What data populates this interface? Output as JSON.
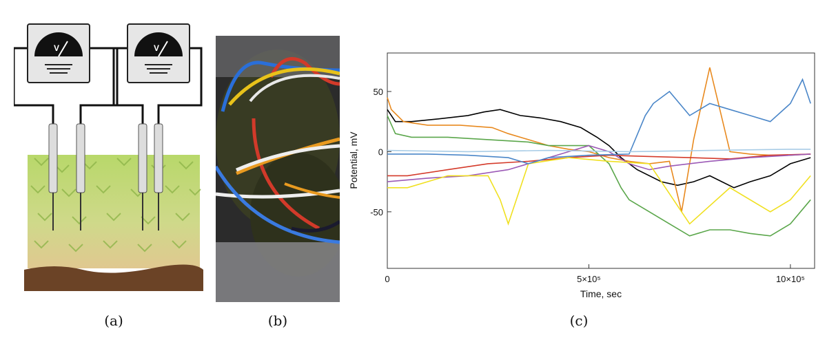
{
  "figure": {
    "captions": {
      "a": "(a)",
      "b": "(b)",
      "c": "(c)"
    },
    "meter_symbol": "V",
    "icons": [
      "voltmeter-icon",
      "electrode-icon",
      "moss-illustration",
      "soil-layer"
    ]
  },
  "chart_data": {
    "type": "line",
    "title": "",
    "xlabel": "Time, sec",
    "ylabel": "Potential, mV",
    "xlim": [
      0,
      1060000
    ],
    "ylim": [
      -97,
      82
    ],
    "x_ticks": [
      {
        "value": 0,
        "label": "0"
      },
      {
        "value": 500000,
        "label": "5×10⁵"
      },
      {
        "value": 1000000,
        "label": "10×10⁵"
      }
    ],
    "y_ticks": [
      {
        "value": 50,
        "label": "50"
      },
      {
        "value": 0,
        "label": "0"
      },
      {
        "value": -50,
        "label": "-50"
      }
    ],
    "grid": false,
    "legend": "none",
    "series": [
      {
        "color": "#000000",
        "x": [
          0,
          20000,
          60000,
          120000,
          200000,
          240000,
          280000,
          330000,
          380000,
          430000,
          480000,
          520000,
          550000,
          580000,
          620000,
          680000,
          720000,
          760000,
          800000,
          830000,
          860000,
          900000,
          950000,
          1000000,
          1050000
        ],
        "y": [
          35,
          25,
          25,
          27,
          30,
          33,
          35,
          30,
          28,
          25,
          20,
          12,
          5,
          -5,
          -15,
          -25,
          -28,
          -25,
          -20,
          -25,
          -30,
          -25,
          -20,
          -10,
          -5
        ]
      },
      {
        "color": "#e8891e",
        "x": [
          0,
          10000,
          40000,
          100000,
          180000,
          260000,
          300000,
          350000,
          400000,
          450000,
          500000,
          550000,
          600000,
          650000,
          700000,
          730000,
          760000,
          800000,
          850000,
          900000,
          950000,
          1000000,
          1050000
        ],
        "y": [
          45,
          35,
          25,
          22,
          22,
          20,
          15,
          10,
          5,
          2,
          0,
          -5,
          -8,
          -10,
          -8,
          -50,
          10,
          70,
          0,
          -2,
          -3,
          -3,
          -2
        ]
      },
      {
        "color": "#5aa64a",
        "x": [
          0,
          20000,
          60000,
          150000,
          250000,
          350000,
          400000,
          450000,
          500000,
          550000,
          580000,
          600000,
          650000,
          700000,
          750000,
          800000,
          850000,
          900000,
          950000,
          1000000,
          1050000
        ],
        "y": [
          30,
          15,
          12,
          12,
          10,
          8,
          5,
          5,
          5,
          -10,
          -30,
          -40,
          -50,
          -60,
          -70,
          -65,
          -65,
          -68,
          -70,
          -60,
          -40
        ]
      },
      {
        "color": "#d43a2a",
        "x": [
          0,
          50000,
          150000,
          250000,
          350000,
          450000,
          550000,
          650000,
          750000,
          850000,
          950000,
          1050000
        ],
        "y": [
          -20,
          -20,
          -15,
          -10,
          -8,
          -5,
          -3,
          -4,
          -5,
          -6,
          -3,
          -2
        ]
      },
      {
        "color": "#9b59b6",
        "x": [
          0,
          100000,
          200000,
          300000,
          350000,
          400000,
          450000,
          500000,
          550000,
          600000,
          650000,
          700000,
          800000,
          900000,
          1000000,
          1050000
        ],
        "y": [
          -25,
          -22,
          -20,
          -15,
          -10,
          -5,
          0,
          5,
          0,
          -10,
          -15,
          -12,
          -8,
          -5,
          -3,
          -2
        ]
      },
      {
        "color": "#f0e020",
        "x": [
          0,
          50000,
          150000,
          250000,
          280000,
          300000,
          320000,
          350000,
          450000,
          550000,
          650000,
          750000,
          850000,
          950000,
          1000000,
          1050000
        ],
        "y": [
          -30,
          -30,
          -20,
          -20,
          -40,
          -60,
          -40,
          -10,
          -5,
          -8,
          -10,
          -60,
          -30,
          -50,
          -40,
          -20
        ]
      },
      {
        "color": "#4a86c8",
        "x": [
          0,
          100000,
          200000,
          300000,
          350000,
          400000,
          500000,
          600000,
          640000,
          660000,
          700000,
          750000,
          800000,
          850000,
          900000,
          950000,
          1000000,
          1030000,
          1050000
        ],
        "y": [
          -2,
          -2,
          -3,
          -5,
          -10,
          -5,
          -3,
          -2,
          30,
          40,
          50,
          30,
          40,
          35,
          30,
          25,
          40,
          60,
          40
        ]
      },
      {
        "color": "#a8cce6",
        "x": [
          0,
          200000,
          400000,
          600000,
          800000,
          1000000,
          1050000
        ],
        "y": [
          1,
          0,
          1,
          0,
          1,
          2,
          2
        ]
      }
    ]
  }
}
